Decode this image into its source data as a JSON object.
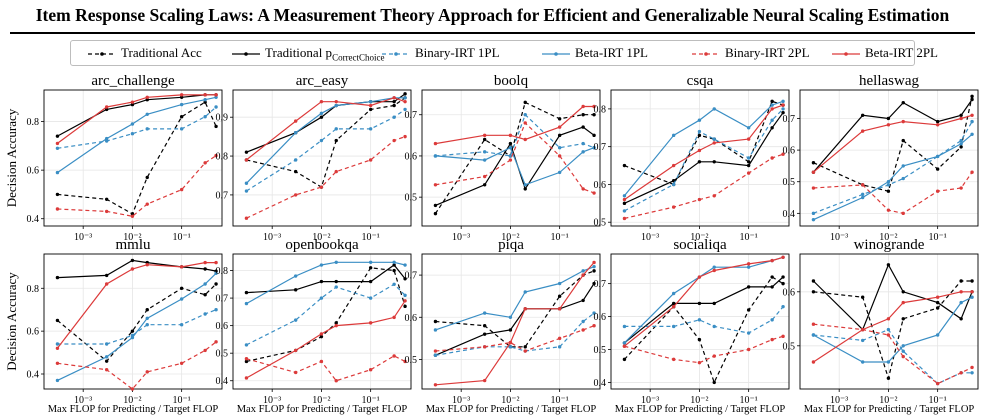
{
  "figure": {
    "title": "Item Response Scaling Laws: A Measurement Theory Approach for Efficient and Generalizable Neural Scaling Estimation",
    "ylabel": "Decision Accuracy",
    "xlabel": "Max FLOP for Predicting / Target FLOP"
  },
  "legend": [
    {
      "key": "trad_acc",
      "label": "Traditional Acc",
      "sub": "",
      "color": "#000000",
      "dashed": true
    },
    {
      "key": "trad_pcc",
      "label": "Traditional p",
      "sub": "CorrectChoice",
      "color": "#000000",
      "dashed": false
    },
    {
      "key": "bin_1pl",
      "label": "Binary-IRT 1PL",
      "sub": "",
      "color": "#3a8ec4",
      "dashed": true
    },
    {
      "key": "beta_1pl",
      "label": "Beta-IRT 1PL",
      "sub": "",
      "color": "#3a8ec4",
      "dashed": false
    },
    {
      "key": "bin_2pl",
      "label": "Binary-IRT 2PL",
      "sub": "",
      "color": "#dc3a3a",
      "dashed": true
    },
    {
      "key": "beta_2pl",
      "label": "Beta-IRT 2PL",
      "sub": "",
      "color": "#dc3a3a",
      "dashed": false
    }
  ],
  "chart_data": [
    {
      "type": "line",
      "title": "arc_challenge",
      "x": [
        0.0003,
        0.003,
        0.01,
        0.02,
        0.1,
        0.3,
        0.5
      ],
      "ylim": [
        0.37,
        0.93
      ],
      "yticks": [
        0.4,
        0.6,
        0.8
      ],
      "ytick_labels": [
        "0.4",
        "0.6",
        "0.8"
      ],
      "xticks": [
        0.001,
        0.01,
        0.1
      ],
      "xtick_labels": [
        "10⁻³",
        "10⁻²",
        "10⁻¹"
      ],
      "series": [
        {
          "key": "trad_acc",
          "values": [
            0.5,
            0.48,
            0.42,
            0.57,
            0.82,
            0.88,
            0.78
          ]
        },
        {
          "key": "trad_pcc",
          "values": [
            0.74,
            0.85,
            0.87,
            0.89,
            0.9,
            0.91,
            0.91
          ]
        },
        {
          "key": "bin_1pl",
          "values": [
            0.69,
            0.72,
            0.75,
            0.77,
            0.77,
            0.82,
            0.86
          ]
        },
        {
          "key": "beta_1pl",
          "values": [
            0.59,
            0.73,
            0.79,
            0.83,
            0.87,
            0.89,
            0.9
          ]
        },
        {
          "key": "bin_2pl",
          "values": [
            0.44,
            0.43,
            0.41,
            0.46,
            0.52,
            0.63,
            0.66
          ]
        },
        {
          "key": "beta_2pl",
          "values": [
            0.71,
            0.86,
            0.88,
            0.9,
            0.91,
            0.91,
            0.91
          ]
        }
      ]
    },
    {
      "type": "line",
      "title": "arc_easy",
      "x": [
        0.0003,
        0.003,
        0.01,
        0.02,
        0.1,
        0.3,
        0.5
      ],
      "ylim": [
        0.62,
        0.97
      ],
      "yticks": [
        0.7,
        0.8,
        0.9
      ],
      "ytick_labels": [
        "0.7",
        "0.8",
        "0.9"
      ],
      "xticks": [
        0.001,
        0.01,
        0.1
      ],
      "xtick_labels": [
        "10⁻³",
        "10⁻²",
        "10⁻¹"
      ],
      "series": [
        {
          "key": "trad_acc",
          "values": [
            0.79,
            0.76,
            0.72,
            0.84,
            0.92,
            0.93,
            0.95
          ]
        },
        {
          "key": "trad_pcc",
          "values": [
            0.81,
            0.86,
            0.9,
            0.93,
            0.94,
            0.94,
            0.96
          ]
        },
        {
          "key": "bin_1pl",
          "values": [
            0.71,
            0.79,
            0.84,
            0.87,
            0.87,
            0.9,
            0.92
          ]
        },
        {
          "key": "beta_1pl",
          "values": [
            0.73,
            0.86,
            0.91,
            0.93,
            0.94,
            0.95,
            0.95
          ]
        },
        {
          "key": "bin_2pl",
          "values": [
            0.64,
            0.7,
            0.72,
            0.76,
            0.79,
            0.84,
            0.85
          ]
        },
        {
          "key": "beta_2pl",
          "values": [
            0.79,
            0.89,
            0.94,
            0.94,
            0.93,
            0.95,
            0.94
          ]
        }
      ]
    },
    {
      "type": "line",
      "title": "boolq",
      "x": [
        0.0003,
        0.003,
        0.01,
        0.02,
        0.1,
        0.3,
        0.5
      ],
      "ylim": [
        0.43,
        0.76
      ],
      "yticks": [
        0.5,
        0.6,
        0.7
      ],
      "ytick_labels": [
        "0.5",
        "0.6",
        "0.7"
      ],
      "xticks": [
        0.001,
        0.01,
        0.1
      ],
      "xtick_labels": [
        "10⁻³",
        "10⁻²",
        "10⁻¹"
      ],
      "series": [
        {
          "key": "trad_acc",
          "values": [
            0.46,
            0.64,
            0.6,
            0.73,
            0.69,
            0.7,
            0.7
          ]
        },
        {
          "key": "trad_pcc",
          "values": [
            0.48,
            0.53,
            0.63,
            0.52,
            0.65,
            0.67,
            0.65
          ]
        },
        {
          "key": "bin_1pl",
          "values": [
            0.6,
            0.61,
            0.6,
            0.7,
            0.62,
            0.63,
            0.62
          ]
        },
        {
          "key": "beta_1pl",
          "values": [
            0.6,
            0.59,
            0.62,
            0.53,
            0.56,
            0.61,
            0.62
          ]
        },
        {
          "key": "bin_2pl",
          "values": [
            0.53,
            0.55,
            0.59,
            0.68,
            0.6,
            0.52,
            0.51
          ]
        },
        {
          "key": "beta_2pl",
          "values": [
            0.63,
            0.65,
            0.65,
            0.64,
            0.67,
            0.72,
            0.72
          ]
        }
      ]
    },
    {
      "type": "line",
      "title": "csqa",
      "x": [
        0.0003,
        0.003,
        0.01,
        0.02,
        0.1,
        0.3,
        0.5
      ],
      "ylim": [
        0.49,
        0.85
      ],
      "yticks": [
        0.5,
        0.6,
        0.7,
        0.8
      ],
      "ytick_labels": [
        "0.5",
        "0.6",
        "0.7",
        "0.8"
      ],
      "xticks": [
        0.001,
        0.01,
        0.1
      ],
      "xtick_labels": [
        "10⁻³",
        "10⁻²",
        "10⁻¹"
      ],
      "series": [
        {
          "key": "trad_acc",
          "values": [
            0.65,
            0.6,
            0.73,
            0.72,
            0.66,
            0.82,
            0.81
          ]
        },
        {
          "key": "trad_pcc",
          "values": [
            0.55,
            0.61,
            0.66,
            0.66,
            0.65,
            0.75,
            0.79
          ]
        },
        {
          "key": "bin_1pl",
          "values": [
            0.53,
            0.6,
            0.74,
            0.72,
            0.67,
            0.77,
            0.8
          ]
        },
        {
          "key": "beta_1pl",
          "values": [
            0.57,
            0.73,
            0.77,
            0.8,
            0.75,
            0.81,
            0.82
          ]
        },
        {
          "key": "bin_2pl",
          "values": [
            0.51,
            0.54,
            0.56,
            0.57,
            0.63,
            0.67,
            0.68
          ]
        },
        {
          "key": "beta_2pl",
          "values": [
            0.56,
            0.65,
            0.69,
            0.71,
            0.72,
            0.8,
            0.81
          ]
        }
      ]
    },
    {
      "type": "line",
      "title": "hellaswag",
      "x": [
        0.0003,
        0.003,
        0.01,
        0.02,
        0.1,
        0.3,
        0.5
      ],
      "ylim": [
        0.36,
        0.79
      ],
      "yticks": [
        0.4,
        0.5,
        0.6,
        0.7
      ],
      "ytick_labels": [
        "0.4",
        "0.5",
        "0.6",
        "0.7"
      ],
      "xticks": [
        0.001,
        0.01,
        0.1
      ],
      "xtick_labels": [
        "10⁻³",
        "10⁻²",
        "10⁻¹"
      ],
      "series": [
        {
          "key": "trad_acc",
          "values": [
            0.56,
            0.49,
            0.47,
            0.63,
            0.54,
            0.61,
            0.77
          ]
        },
        {
          "key": "trad_pcc",
          "values": [
            0.53,
            0.71,
            0.7,
            0.75,
            0.69,
            0.71,
            0.76
          ]
        },
        {
          "key": "bin_1pl",
          "values": [
            0.4,
            0.46,
            0.49,
            0.51,
            0.58,
            0.63,
            0.69
          ]
        },
        {
          "key": "beta_1pl",
          "values": [
            0.38,
            0.45,
            0.5,
            0.55,
            0.58,
            0.62,
            0.65
          ]
        },
        {
          "key": "bin_2pl",
          "values": [
            0.48,
            0.49,
            0.41,
            0.4,
            0.47,
            0.48,
            0.53
          ]
        },
        {
          "key": "beta_2pl",
          "values": [
            0.53,
            0.66,
            0.68,
            0.69,
            0.68,
            0.7,
            0.71
          ]
        }
      ]
    },
    {
      "type": "line",
      "title": "mmlu",
      "x": [
        0.0003,
        0.003,
        0.01,
        0.02,
        0.1,
        0.3,
        0.5
      ],
      "ylim": [
        0.33,
        0.96
      ],
      "yticks": [
        0.4,
        0.6,
        0.8
      ],
      "ytick_labels": [
        "0.4",
        "0.6",
        "0.8"
      ],
      "xticks": [
        0.001,
        0.01,
        0.1
      ],
      "xtick_labels": [
        "10⁻³",
        "10⁻²",
        "10⁻¹"
      ],
      "series": [
        {
          "key": "trad_acc",
          "values": [
            0.65,
            0.46,
            0.6,
            0.7,
            0.8,
            0.77,
            0.82
          ]
        },
        {
          "key": "trad_pcc",
          "values": [
            0.85,
            0.86,
            0.93,
            0.92,
            0.9,
            0.89,
            0.88
          ]
        },
        {
          "key": "bin_1pl",
          "values": [
            0.54,
            0.54,
            0.58,
            0.63,
            0.63,
            0.68,
            0.7
          ]
        },
        {
          "key": "beta_1pl",
          "values": [
            0.37,
            0.48,
            0.57,
            0.66,
            0.75,
            0.82,
            0.87
          ]
        },
        {
          "key": "bin_2pl",
          "values": [
            0.45,
            0.42,
            0.33,
            0.41,
            0.45,
            0.51,
            0.55
          ]
        },
        {
          "key": "beta_2pl",
          "values": [
            0.52,
            0.82,
            0.89,
            0.91,
            0.9,
            0.92,
            0.92
          ]
        }
      ]
    },
    {
      "type": "line",
      "title": "openbookqa",
      "x": [
        0.0003,
        0.003,
        0.01,
        0.02,
        0.1,
        0.3,
        0.5
      ],
      "ylim": [
        0.37,
        0.86
      ],
      "yticks": [
        0.4,
        0.5,
        0.6,
        0.7,
        0.8
      ],
      "ytick_labels": [
        "0.4",
        "0.5",
        "0.6",
        "0.7",
        "0.8"
      ],
      "xticks": [
        0.001,
        0.01,
        0.1
      ],
      "xtick_labels": [
        "10⁻³",
        "10⁻²",
        "10⁻¹"
      ],
      "series": [
        {
          "key": "trad_acc",
          "values": [
            0.47,
            0.51,
            0.56,
            0.61,
            0.81,
            0.8,
            0.67
          ]
        },
        {
          "key": "trad_pcc",
          "values": [
            0.72,
            0.73,
            0.76,
            0.76,
            0.76,
            0.82,
            0.77
          ]
        },
        {
          "key": "bin_1pl",
          "values": [
            0.53,
            0.62,
            0.7,
            0.74,
            0.7,
            0.75,
            0.71
          ]
        },
        {
          "key": "beta_1pl",
          "values": [
            0.68,
            0.78,
            0.82,
            0.83,
            0.83,
            0.83,
            0.82
          ]
        },
        {
          "key": "bin_2pl",
          "values": [
            0.48,
            0.43,
            0.47,
            0.4,
            0.44,
            0.49,
            0.47
          ]
        },
        {
          "key": "beta_2pl",
          "values": [
            0.41,
            0.51,
            0.57,
            0.6,
            0.61,
            0.63,
            0.69
          ]
        }
      ]
    },
    {
      "type": "line",
      "title": "piqa",
      "x": [
        0.0003,
        0.003,
        0.01,
        0.02,
        0.1,
        0.3,
        0.5
      ],
      "ylim": [
        0.43,
        0.75
      ],
      "yticks": [
        0.5,
        0.6,
        0.7
      ],
      "ytick_labels": [
        "0.5",
        "0.6",
        "0.7"
      ],
      "xticks": [
        0.001,
        0.01,
        0.1
      ],
      "xtick_labels": [
        "10⁻³",
        "10⁻²",
        "10⁻¹"
      ],
      "series": [
        {
          "key": "trad_acc",
          "values": [
            0.59,
            0.58,
            0.53,
            0.53,
            0.65,
            0.7,
            0.71
          ]
        },
        {
          "key": "trad_pcc",
          "values": [
            0.51,
            0.56,
            0.57,
            0.62,
            0.62,
            0.64,
            0.68
          ]
        },
        {
          "key": "bin_1pl",
          "values": [
            0.51,
            0.53,
            0.53,
            0.52,
            0.53,
            0.59,
            0.61
          ]
        },
        {
          "key": "beta_1pl",
          "values": [
            0.57,
            0.61,
            0.6,
            0.66,
            0.68,
            0.71,
            0.72
          ]
        },
        {
          "key": "bin_2pl",
          "values": [
            0.52,
            0.53,
            0.54,
            0.52,
            0.55,
            0.57,
            0.58
          ]
        },
        {
          "key": "beta_2pl",
          "values": [
            0.44,
            0.45,
            0.54,
            0.62,
            0.62,
            0.7,
            0.73
          ]
        }
      ]
    },
    {
      "type": "line",
      "title": "socialiqa",
      "x": [
        0.0003,
        0.003,
        0.01,
        0.02,
        0.1,
        0.3,
        0.5
      ],
      "ylim": [
        0.38,
        0.79
      ],
      "yticks": [
        0.4,
        0.5,
        0.6,
        0.7
      ],
      "ytick_labels": [
        "0.4",
        "0.5",
        "0.6",
        "0.7"
      ],
      "xticks": [
        0.001,
        0.01,
        0.1
      ],
      "xtick_labels": [
        "10⁻³",
        "10⁻²",
        "10⁻¹"
      ],
      "series": [
        {
          "key": "trad_acc",
          "values": [
            0.47,
            0.63,
            0.53,
            0.4,
            0.62,
            0.72,
            0.7
          ]
        },
        {
          "key": "trad_pcc",
          "values": [
            0.52,
            0.64,
            0.64,
            0.64,
            0.69,
            0.69,
            0.72
          ]
        },
        {
          "key": "bin_1pl",
          "values": [
            0.57,
            0.57,
            0.59,
            0.57,
            0.55,
            0.59,
            0.63
          ]
        },
        {
          "key": "beta_1pl",
          "values": [
            0.52,
            0.67,
            0.72,
            0.75,
            0.75,
            0.77,
            0.78
          ]
        },
        {
          "key": "bin_2pl",
          "values": [
            0.51,
            0.47,
            0.46,
            0.48,
            0.5,
            0.53,
            0.54
          ]
        },
        {
          "key": "beta_2pl",
          "values": [
            0.51,
            0.63,
            0.72,
            0.74,
            0.76,
            0.77,
            0.78
          ]
        }
      ]
    },
    {
      "type": "line",
      "title": "winogrande",
      "x": [
        0.0003,
        0.003,
        0.01,
        0.02,
        0.1,
        0.3,
        0.5
      ],
      "ylim": [
        0.42,
        0.67
      ],
      "yticks": [
        0.5,
        0.6
      ],
      "ytick_labels": [
        "0.5",
        "0.6"
      ],
      "xticks": [
        0.001,
        0.01,
        0.1
      ],
      "xtick_labels": [
        "10⁻³",
        "10⁻²",
        "10⁻¹"
      ],
      "series": [
        {
          "key": "trad_acc",
          "values": [
            0.6,
            0.59,
            0.44,
            0.55,
            0.57,
            0.62,
            0.62
          ]
        },
        {
          "key": "trad_pcc",
          "values": [
            0.62,
            0.53,
            0.65,
            0.6,
            0.58,
            0.55,
            0.6
          ]
        },
        {
          "key": "bin_1pl",
          "values": [
            0.52,
            0.51,
            0.53,
            0.49,
            0.43,
            0.45,
            0.45
          ]
        },
        {
          "key": "beta_1pl",
          "values": [
            0.52,
            0.47,
            0.47,
            0.5,
            0.52,
            0.58,
            0.59
          ]
        },
        {
          "key": "bin_2pl",
          "values": [
            0.54,
            0.53,
            0.52,
            0.48,
            0.43,
            0.45,
            0.46
          ]
        },
        {
          "key": "beta_2pl",
          "values": [
            0.47,
            0.53,
            0.55,
            0.58,
            0.59,
            0.6,
            0.6
          ]
        }
      ]
    }
  ]
}
